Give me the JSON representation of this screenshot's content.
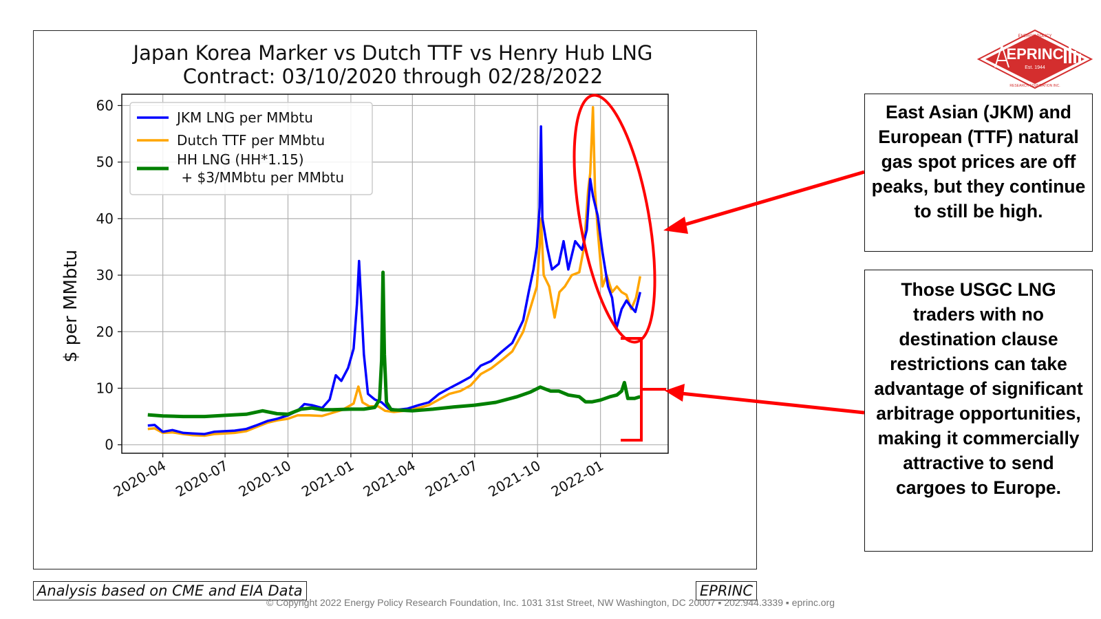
{
  "chart_data": {
    "type": "line",
    "title": "Japan Korea Marker vs Dutch TTF vs Henry Hub LNG",
    "subtitle": "Contract: 03/10/2020 through 02/28/2022",
    "xlabel": "",
    "ylabel": "$ per MMbtu",
    "ylim": [
      -1.5,
      62
    ],
    "xlim": [
      "2020-02-01",
      "2022-04-10"
    ],
    "yticks": [
      0,
      10,
      20,
      30,
      40,
      50,
      60
    ],
    "xticks": [
      "2020-04",
      "2020-07",
      "2020-10",
      "2021-01",
      "2021-04",
      "2021-07",
      "2021-10",
      "2022-01"
    ],
    "grid": true,
    "legend_position": "top-left",
    "series": [
      {
        "name": "JKM LNG per MMbtu",
        "color": "#0000ff",
        "points": [
          [
            "2020-03-10",
            3.4
          ],
          [
            "2020-03-20",
            3.5
          ],
          [
            "2020-04-01",
            2.3
          ],
          [
            "2020-04-15",
            2.6
          ],
          [
            "2020-05-01",
            2.1
          ],
          [
            "2020-05-15",
            2.0
          ],
          [
            "2020-06-01",
            1.9
          ],
          [
            "2020-06-15",
            2.3
          ],
          [
            "2020-07-01",
            2.4
          ],
          [
            "2020-07-15",
            2.5
          ],
          [
            "2020-08-01",
            2.8
          ],
          [
            "2020-08-15",
            3.4
          ],
          [
            "2020-09-01",
            4.2
          ],
          [
            "2020-09-15",
            4.6
          ],
          [
            "2020-10-01",
            5.2
          ],
          [
            "2020-10-15",
            6.0
          ],
          [
            "2020-10-25",
            7.2
          ],
          [
            "2020-11-05",
            7.0
          ],
          [
            "2020-11-20",
            6.5
          ],
          [
            "2020-12-01",
            8.0
          ],
          [
            "2020-12-10",
            12.3
          ],
          [
            "2020-12-18",
            11.3
          ],
          [
            "2020-12-28",
            13.6
          ],
          [
            "2021-01-05",
            17.0
          ],
          [
            "2021-01-10",
            25.0
          ],
          [
            "2021-01-13",
            32.5
          ],
          [
            "2021-01-16",
            25.5
          ],
          [
            "2021-01-20",
            16.0
          ],
          [
            "2021-01-26",
            9.0
          ],
          [
            "2021-02-05",
            8.0
          ],
          [
            "2021-02-15",
            7.5
          ],
          [
            "2021-02-25",
            6.4
          ],
          [
            "2021-03-10",
            6.2
          ],
          [
            "2021-03-25",
            6.4
          ],
          [
            "2021-04-10",
            7.0
          ],
          [
            "2021-04-25",
            7.5
          ],
          [
            "2021-05-10",
            9.0
          ],
          [
            "2021-05-25",
            10.0
          ],
          [
            "2021-06-10",
            11.0
          ],
          [
            "2021-06-25",
            12.0
          ],
          [
            "2021-07-10",
            14.0
          ],
          [
            "2021-07-25",
            14.8
          ],
          [
            "2021-08-10",
            16.5
          ],
          [
            "2021-08-25",
            18.0
          ],
          [
            "2021-09-10",
            22.0
          ],
          [
            "2021-09-18",
            27.0
          ],
          [
            "2021-09-25",
            31.0
          ],
          [
            "2021-09-30",
            35.0
          ],
          [
            "2021-10-04",
            42.0
          ],
          [
            "2021-10-06",
            56.3
          ],
          [
            "2021-10-08",
            40.0
          ],
          [
            "2021-10-15",
            35.0
          ],
          [
            "2021-10-22",
            31.0
          ],
          [
            "2021-11-01",
            32.0
          ],
          [
            "2021-11-08",
            36.0
          ],
          [
            "2021-11-15",
            31.0
          ],
          [
            "2021-11-25",
            36.0
          ],
          [
            "2021-12-05",
            34.5
          ],
          [
            "2021-12-12",
            38.0
          ],
          [
            "2021-12-17",
            47.0
          ],
          [
            "2021-12-21",
            44.0
          ],
          [
            "2021-12-28",
            40.5
          ],
          [
            "2022-01-04",
            34.0
          ],
          [
            "2022-01-12",
            28.0
          ],
          [
            "2022-01-18",
            26.0
          ],
          [
            "2022-01-24",
            20.5
          ],
          [
            "2022-02-01",
            24.0
          ],
          [
            "2022-02-08",
            25.5
          ],
          [
            "2022-02-14",
            24.5
          ],
          [
            "2022-02-21",
            23.5
          ],
          [
            "2022-02-28",
            27.0
          ]
        ]
      },
      {
        "name": "Dutch TTF per MMbtu",
        "color": "#ffa500",
        "points": [
          [
            "2020-03-10",
            2.8
          ],
          [
            "2020-03-20",
            2.9
          ],
          [
            "2020-04-01",
            2.1
          ],
          [
            "2020-04-15",
            2.2
          ],
          [
            "2020-05-01",
            1.9
          ],
          [
            "2020-05-15",
            1.7
          ],
          [
            "2020-06-01",
            1.6
          ],
          [
            "2020-06-15",
            1.9
          ],
          [
            "2020-07-01",
            2.0
          ],
          [
            "2020-07-15",
            2.1
          ],
          [
            "2020-08-01",
            2.4
          ],
          [
            "2020-08-15",
            3.1
          ],
          [
            "2020-09-01",
            3.9
          ],
          [
            "2020-09-15",
            4.3
          ],
          [
            "2020-10-01",
            4.6
          ],
          [
            "2020-10-15",
            5.2
          ],
          [
            "2020-11-01",
            5.2
          ],
          [
            "2020-11-20",
            5.1
          ],
          [
            "2020-12-01",
            5.5
          ],
          [
            "2020-12-20",
            6.2
          ],
          [
            "2021-01-05",
            7.3
          ],
          [
            "2021-01-12",
            10.3
          ],
          [
            "2021-01-18",
            7.5
          ],
          [
            "2021-01-28",
            6.8
          ],
          [
            "2021-02-10",
            6.8
          ],
          [
            "2021-02-20",
            6.0
          ],
          [
            "2021-03-05",
            5.8
          ],
          [
            "2021-03-20",
            6.0
          ],
          [
            "2021-04-10",
            6.5
          ],
          [
            "2021-04-25",
            7.0
          ],
          [
            "2021-05-10",
            8.0
          ],
          [
            "2021-05-25",
            9.0
          ],
          [
            "2021-06-10",
            9.5
          ],
          [
            "2021-06-25",
            10.5
          ],
          [
            "2021-07-10",
            12.5
          ],
          [
            "2021-07-25",
            13.5
          ],
          [
            "2021-08-10",
            15.0
          ],
          [
            "2021-08-25",
            16.5
          ],
          [
            "2021-09-10",
            20.0
          ],
          [
            "2021-09-20",
            24.0
          ],
          [
            "2021-09-30",
            28.0
          ],
          [
            "2021-10-04",
            35.0
          ],
          [
            "2021-10-06",
            40.0
          ],
          [
            "2021-10-10",
            30.0
          ],
          [
            "2021-10-18",
            28.0
          ],
          [
            "2021-10-26",
            22.5
          ],
          [
            "2021-11-02",
            27.0
          ],
          [
            "2021-11-10",
            28.0
          ],
          [
            "2021-11-20",
            30.0
          ],
          [
            "2021-12-01",
            30.5
          ],
          [
            "2021-12-08",
            35.0
          ],
          [
            "2021-12-14",
            45.0
          ],
          [
            "2021-12-17",
            48.0
          ],
          [
            "2021-12-21",
            59.7
          ],
          [
            "2021-12-24",
            45.0
          ],
          [
            "2021-12-28",
            38.0
          ],
          [
            "2022-01-04",
            28.0
          ],
          [
            "2022-01-10",
            30.0
          ],
          [
            "2022-01-18",
            27.0
          ],
          [
            "2022-01-25",
            28.0
          ],
          [
            "2022-02-01",
            27.0
          ],
          [
            "2022-02-08",
            26.5
          ],
          [
            "2022-02-15",
            24.0
          ],
          [
            "2022-02-22",
            26.0
          ],
          [
            "2022-02-28",
            29.8
          ]
        ]
      },
      {
        "name": "HH LNG (HH*1.15)\n + $3/MMbtu per MMbtu",
        "color": "#008000",
        "points": [
          [
            "2020-03-10",
            5.3
          ],
          [
            "2020-04-01",
            5.1
          ],
          [
            "2020-05-01",
            5.0
          ],
          [
            "2020-06-01",
            5.0
          ],
          [
            "2020-07-01",
            5.2
          ],
          [
            "2020-08-01",
            5.4
          ],
          [
            "2020-08-25",
            6.0
          ],
          [
            "2020-09-15",
            5.5
          ],
          [
            "2020-10-01",
            5.4
          ],
          [
            "2020-10-20",
            6.3
          ],
          [
            "2020-11-05",
            6.5
          ],
          [
            "2020-11-20",
            6.2
          ],
          [
            "2020-12-05",
            6.2
          ],
          [
            "2021-01-01",
            6.3
          ],
          [
            "2021-01-20",
            6.3
          ],
          [
            "2021-02-05",
            6.6
          ],
          [
            "2021-02-12",
            8.0
          ],
          [
            "2021-02-15",
            15.0
          ],
          [
            "2021-02-17",
            30.5
          ],
          [
            "2021-02-19",
            16.0
          ],
          [
            "2021-02-22",
            7.5
          ],
          [
            "2021-03-01",
            6.2
          ],
          [
            "2021-04-01",
            6.0
          ],
          [
            "2021-05-01",
            6.3
          ],
          [
            "2021-06-01",
            6.7
          ],
          [
            "2021-07-01",
            7.0
          ],
          [
            "2021-08-01",
            7.5
          ],
          [
            "2021-09-01",
            8.5
          ],
          [
            "2021-09-20",
            9.3
          ],
          [
            "2021-10-05",
            10.2
          ],
          [
            "2021-10-20",
            9.5
          ],
          [
            "2021-11-01",
            9.5
          ],
          [
            "2021-11-15",
            8.8
          ],
          [
            "2021-12-01",
            8.5
          ],
          [
            "2021-12-10",
            7.6
          ],
          [
            "2021-12-20",
            7.6
          ],
          [
            "2022-01-01",
            7.9
          ],
          [
            "2022-01-15",
            8.5
          ],
          [
            "2022-01-25",
            8.8
          ],
          [
            "2022-02-01",
            9.5
          ],
          [
            "2022-02-05",
            11.0
          ],
          [
            "2022-02-10",
            8.2
          ],
          [
            "2022-02-20",
            8.2
          ],
          [
            "2022-02-28",
            8.5
          ]
        ]
      }
    ]
  },
  "chart_note": "Analysis based on CME and EIA Data",
  "chart_credit": "EPRINC",
  "callouts": [
    {
      "text": "East Asian (JKM) and European (TTF) natural gas spot prices are off peaks, but they continue to still be high."
    },
    {
      "text": "Those USGC LNG traders with no destination clause restrictions can take advantage of significant arbitrage opportunities, making it commercially attractive to send cargoes to Europe."
    }
  ],
  "logo": {
    "name": "EPRINC",
    "ring_top": "ENERGY POLICY",
    "ring_bottom": "RESEARCH FOUNDATION INC.",
    "est": "Est. 1944",
    "color": "#d42e2e"
  },
  "footer": "© Copyright 2022 Energy Policy Research Foundation, Inc. 1031 31st Street, NW Washington, DC 20007 ▪ 202.944.3339 ▪ eprinc.org",
  "annotation_color": "#ff0000"
}
